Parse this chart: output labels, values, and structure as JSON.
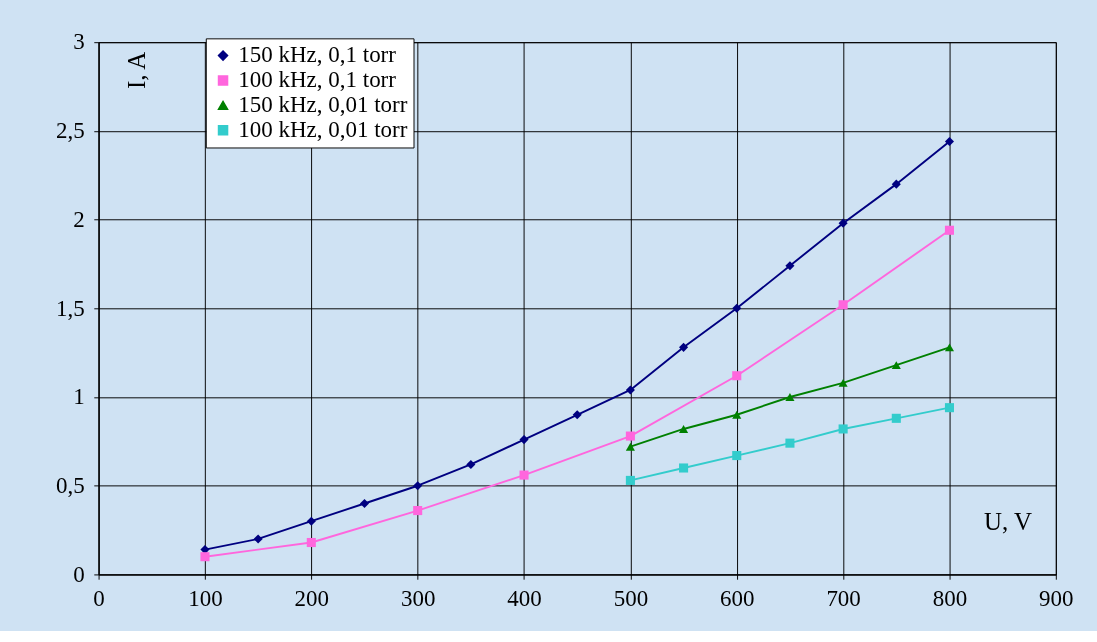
{
  "chart_data": {
    "type": "line",
    "xlabel": "U, V",
    "ylabel": "I, A",
    "xlim": [
      0,
      900
    ],
    "xticks": [
      0,
      100,
      200,
      300,
      400,
      500,
      600,
      700,
      800,
      900
    ],
    "ylim": [
      0,
      3
    ],
    "yticks": [
      0,
      {
        "value": 0.5,
        "label": "0,5"
      },
      1,
      {
        "value": 1.5,
        "label": "1,5"
      },
      2,
      {
        "value": 2.5,
        "label": "2,5"
      },
      3
    ],
    "grid": true,
    "legend": "top left",
    "series": [
      {
        "name": "150 kHz, 0,1 torr",
        "color": "#000080",
        "marker": "diamond",
        "x": [
          100,
          150,
          200,
          250,
          300,
          350,
          400,
          450,
          500,
          550,
          600,
          650,
          700,
          750,
          800
        ],
        "values": [
          0.14,
          0.2,
          0.3,
          0.4,
          0.5,
          0.62,
          0.76,
          0.9,
          1.04,
          1.28,
          1.5,
          1.74,
          1.98,
          2.2,
          2.44
        ]
      },
      {
        "name": "100 kHz, 0,1 torr",
        "color": "#ff66dd",
        "marker": "square",
        "x": [
          100,
          200,
          300,
          400,
          500,
          600,
          700,
          800
        ],
        "values": [
          0.1,
          0.18,
          0.36,
          0.56,
          0.78,
          1.12,
          1.52,
          1.94
        ]
      },
      {
        "name": "150 kHz, 0,01 torr",
        "color": "#008000",
        "marker": "triangle",
        "x": [
          500,
          550,
          600,
          650,
          700,
          750,
          800
        ],
        "values": [
          0.72,
          0.82,
          0.9,
          1.0,
          1.08,
          1.18,
          1.28
        ]
      },
      {
        "name": "100 kHz, 0,01 torr",
        "color": "#33cccc",
        "marker": "square",
        "x": [
          500,
          550,
          600,
          650,
          700,
          750,
          800
        ],
        "values": [
          0.53,
          0.6,
          0.67,
          0.74,
          0.82,
          0.88,
          0.94
        ]
      }
    ]
  }
}
